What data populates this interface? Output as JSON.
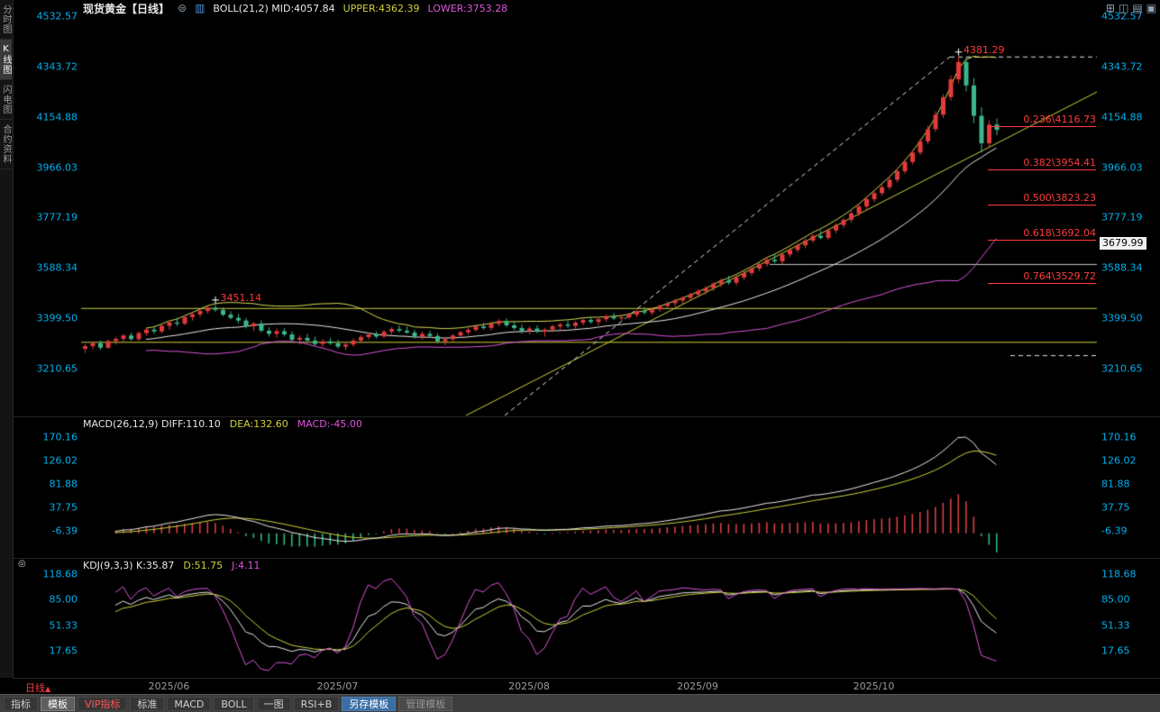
{
  "colors": {
    "up": "#e23b3b",
    "down": "#3cb68b",
    "axis": "#00b0f0",
    "fib": "#ff3b3b",
    "boll_mid": "#e8e8e8",
    "boll_upper": "#d8d855",
    "boll_lower": "#da55da",
    "diff": "#e8e8e8",
    "dea": "#cdd23a",
    "hist_pos": "#d94040",
    "hist_neg": "#2eb87e",
    "k": "#e8e8e8",
    "d": "#cdd23a",
    "j": "#dd55dd"
  },
  "sidebar": {
    "tabs": [
      {
        "label": "分时图",
        "name": "time-chart",
        "active": false
      },
      {
        "label": "K线图",
        "name": "kline-chart",
        "active": true
      },
      {
        "label": "闪电图",
        "name": "lightning-chart",
        "active": false
      },
      {
        "label": "合约资料",
        "name": "contract-info",
        "active": false
      }
    ]
  },
  "header": {
    "title": "现货黄金【日线】",
    "settings_icon": "⊜",
    "indicator_icon": "▥",
    "boll_text": "BOLL(21,2) MID:4057.84",
    "boll_upper": "UPPER:4362.39",
    "boll_lower": "LOWER:3753.28",
    "layout_icons": [
      {
        "name": "layout-grid-icon",
        "glyph": "⊞"
      },
      {
        "name": "layout-two-column-icon",
        "glyph": "◫"
      },
      {
        "name": "layout-rows-icon",
        "glyph": "▤"
      },
      {
        "name": "layout-single-icon",
        "glyph": "▣"
      }
    ]
  },
  "macd_header": {
    "main": "MACD(26,12,9) DIFF:110.10",
    "dea": "DEA:132.60",
    "macd": "MACD:-45.00"
  },
  "kdj_header": {
    "icon": "◎",
    "main": "KDJ(9,3,3) K:35.87",
    "d": "D:51.75",
    "j": "J:4.11"
  },
  "footer": {
    "period_label": "日线",
    "period_arrow": "▲",
    "toolbar": [
      {
        "label": "指标",
        "name": "indicators",
        "style": "tab"
      },
      {
        "label": "模板",
        "name": "templates",
        "style": "tab-active"
      },
      {
        "label": "VIP指标",
        "name": "vip-indicators",
        "style": "vip"
      },
      {
        "label": "标准",
        "name": "standard",
        "style": "tab"
      },
      {
        "label": "MACD",
        "name": "macd",
        "style": "tab"
      },
      {
        "label": "BOLL",
        "name": "boll",
        "style": "tab"
      },
      {
        "label": "一图",
        "name": "one-chart",
        "style": "tab"
      },
      {
        "label": "RSI+B",
        "name": "rsi-b",
        "style": "tab"
      },
      {
        "label": "另存模板",
        "name": "save-template",
        "style": "primary"
      },
      {
        "label": "管理模板",
        "name": "manage-templates",
        "style": "muted"
      }
    ]
  },
  "chart_data": {
    "type": "candlestick",
    "symbol": "现货黄金",
    "period": "日线",
    "price_axis_ticks": [
      "4532.57",
      "4343.72",
      "4154.88",
      "3966.03",
      "3777.19",
      "3588.34",
      "3399.50",
      "3210.65"
    ],
    "macd_axis_ticks": [
      "170.16",
      "126.02",
      "81.88",
      "37.75",
      "-6.39"
    ],
    "kdj_axis_ticks": [
      "118.68",
      "85.00",
      "51.33",
      "17.65"
    ],
    "x_ticks": [
      {
        "index": 11,
        "label": "2025/06"
      },
      {
        "index": 33,
        "label": "2025/07"
      },
      {
        "index": 58,
        "label": "2025/08"
      },
      {
        "index": 80,
        "label": "2025/09"
      },
      {
        "index": 103,
        "label": "2025/10"
      }
    ],
    "boll": {
      "period": 21,
      "mult": 2
    },
    "macd": {
      "fast": 12,
      "slow": 26,
      "signal": 9
    },
    "kdj": {
      "n": 9,
      "m1": 3,
      "m2": 3
    },
    "candles": [
      [
        3285,
        3302,
        3270,
        3295
      ],
      [
        3295,
        3312,
        3284,
        3306
      ],
      [
        3306,
        3316,
        3281,
        3289
      ],
      [
        3289,
        3320,
        3285,
        3314
      ],
      [
        3314,
        3330,
        3301,
        3322
      ],
      [
        3322,
        3341,
        3310,
        3335
      ],
      [
        3335,
        3346,
        3316,
        3321
      ],
      [
        3321,
        3350,
        3315,
        3344
      ],
      [
        3344,
        3364,
        3334,
        3357
      ],
      [
        3357,
        3371,
        3341,
        3350
      ],
      [
        3350,
        3379,
        3344,
        3371
      ],
      [
        3371,
        3390,
        3356,
        3384
      ],
      [
        3384,
        3401,
        3370,
        3379
      ],
      [
        3379,
        3410,
        3374,
        3404
      ],
      [
        3404,
        3421,
        3391,
        3414
      ],
      [
        3414,
        3434,
        3404,
        3427
      ],
      [
        3427,
        3446,
        3417,
        3439
      ],
      [
        3439,
        3451.14,
        3424,
        3431
      ],
      [
        3431,
        3441,
        3406,
        3413
      ],
      [
        3413,
        3426,
        3396,
        3401
      ],
      [
        3401,
        3416,
        3381,
        3391
      ],
      [
        3391,
        3401,
        3361,
        3369
      ],
      [
        3369,
        3386,
        3351,
        3380
      ],
      [
        3380,
        3391,
        3346,
        3353
      ],
      [
        3353,
        3366,
        3331,
        3341
      ],
      [
        3341,
        3361,
        3326,
        3351
      ],
      [
        3351,
        3363,
        3331,
        3339
      ],
      [
        3339,
        3351,
        3311,
        3319
      ],
      [
        3319,
        3336,
        3301,
        3326
      ],
      [
        3326,
        3341,
        3309,
        3316
      ],
      [
        3316,
        3331,
        3296,
        3303
      ],
      [
        3303,
        3321,
        3291,
        3313
      ],
      [
        3313,
        3326,
        3299,
        3306
      ],
      [
        3306,
        3319,
        3286,
        3293
      ],
      [
        3293,
        3311,
        3281,
        3301
      ],
      [
        3301,
        3323,
        3293,
        3316
      ],
      [
        3316,
        3336,
        3306,
        3329
      ],
      [
        3329,
        3346,
        3319,
        3339
      ],
      [
        3339,
        3351,
        3323,
        3331
      ],
      [
        3331,
        3356,
        3326,
        3349
      ],
      [
        3349,
        3366,
        3339,
        3359
      ],
      [
        3359,
        3373,
        3346,
        3353
      ],
      [
        3353,
        3369,
        3341,
        3346
      ],
      [
        3346,
        3356,
        3323,
        3331
      ],
      [
        3331,
        3349,
        3319,
        3341
      ],
      [
        3341,
        3353,
        3326,
        3333
      ],
      [
        3333,
        3343,
        3306,
        3313
      ],
      [
        3313,
        3329,
        3299,
        3321
      ],
      [
        3321,
        3341,
        3311,
        3335
      ],
      [
        3335,
        3353,
        3327,
        3347
      ],
      [
        3347,
        3363,
        3337,
        3356
      ],
      [
        3356,
        3376,
        3349,
        3369
      ],
      [
        3369,
        3383,
        3356,
        3363
      ],
      [
        3363,
        3386,
        3353,
        3379
      ],
      [
        3379,
        3396,
        3369,
        3389
      ],
      [
        3389,
        3399,
        3366,
        3373
      ],
      [
        3373,
        3386,
        3356,
        3363
      ],
      [
        3363,
        3376,
        3341,
        3351
      ],
      [
        3351,
        3369,
        3339,
        3361
      ],
      [
        3361,
        3373,
        3343,
        3349
      ],
      [
        3349,
        3363,
        3331,
        3357
      ],
      [
        3357,
        3376,
        3347,
        3369
      ],
      [
        3369,
        3383,
        3357,
        3376
      ],
      [
        3376,
        3391,
        3363,
        3371
      ],
      [
        3371,
        3389,
        3361,
        3383
      ],
      [
        3383,
        3399,
        3373,
        3393
      ],
      [
        3393,
        3406,
        3379,
        3386
      ],
      [
        3386,
        3401,
        3373,
        3396
      ],
      [
        3396,
        3413,
        3386,
        3406
      ],
      [
        3406,
        3419,
        3393,
        3399
      ],
      [
        3399,
        3411,
        3386,
        3403
      ],
      [
        3403,
        3421,
        3396,
        3413
      ],
      [
        3413,
        3431,
        3403,
        3426
      ],
      [
        3426,
        3441,
        3413,
        3421
      ],
      [
        3421,
        3439,
        3411,
        3433
      ],
      [
        3433,
        3451,
        3423,
        3446
      ],
      [
        3446,
        3463,
        3436,
        3456
      ],
      [
        3456,
        3473,
        3443,
        3466
      ],
      [
        3466,
        3481,
        3453,
        3476
      ],
      [
        3476,
        3496,
        3466,
        3489
      ],
      [
        3489,
        3509,
        3479,
        3501
      ],
      [
        3501,
        3521,
        3489,
        3513
      ],
      [
        3513,
        3536,
        3501,
        3529
      ],
      [
        3529,
        3549,
        3516,
        3541
      ],
      [
        3541,
        3559,
        3526,
        3533
      ],
      [
        3533,
        3561,
        3523,
        3553
      ],
      [
        3553,
        3576,
        3543,
        3569
      ],
      [
        3569,
        3593,
        3559,
        3586
      ],
      [
        3586,
        3611,
        3576,
        3603
      ],
      [
        3603,
        3629,
        3593,
        3619
      ],
      [
        3619,
        3641,
        3606,
        3613
      ],
      [
        3613,
        3646,
        3603,
        3639
      ],
      [
        3639,
        3663,
        3629,
        3656
      ],
      [
        3656,
        3681,
        3646,
        3673
      ],
      [
        3673,
        3699,
        3663,
        3691
      ],
      [
        3691,
        3716,
        3681,
        3709
      ],
      [
        3709,
        3729,
        3696,
        3701
      ],
      [
        3701,
        3736,
        3693,
        3729
      ],
      [
        3729,
        3756,
        3719,
        3749
      ],
      [
        3749,
        3776,
        3739,
        3769
      ],
      [
        3769,
        3801,
        3759,
        3793
      ],
      [
        3793,
        3829,
        3783,
        3819
      ],
      [
        3819,
        3853,
        3809,
        3846
      ],
      [
        3846,
        3879,
        3836,
        3869
      ],
      [
        3869,
        3901,
        3859,
        3891
      ],
      [
        3891,
        3929,
        3881,
        3919
      ],
      [
        3919,
        3961,
        3909,
        3951
      ],
      [
        3951,
        3996,
        3941,
        3986
      ],
      [
        3986,
        4031,
        3976,
        4021
      ],
      [
        4021,
        4073,
        4011,
        4063
      ],
      [
        4063,
        4121,
        4053,
        4109
      ],
      [
        4109,
        4176,
        4099,
        4163
      ],
      [
        4163,
        4241,
        4151,
        4229
      ],
      [
        4229,
        4311,
        4216,
        4296
      ],
      [
        4296,
        4381.29,
        4281,
        4361
      ],
      [
        4361,
        4379,
        4251,
        4273
      ],
      [
        4273,
        4301,
        4131,
        4159
      ],
      [
        4159,
        4191,
        4021,
        4056
      ],
      [
        4056,
        4141,
        4041,
        4126
      ],
      [
        4126,
        4149,
        4086,
        4106
      ]
    ],
    "annotations": {
      "peak_labels": [
        {
          "text": "3451.14",
          "index": 17,
          "price": 3451.14
        },
        {
          "text": "4381.29",
          "index": 114,
          "price": 4381.29
        }
      ],
      "fib_levels": [
        {
          "text": "0.236\\4116.73",
          "price": 4116.73
        },
        {
          "text": "0.382\\3954.41",
          "price": 3954.41
        },
        {
          "text": "0.500\\3823.23",
          "price": 3823.23
        },
        {
          "text": "0.618\\3692.04",
          "price": 3692.04
        },
        {
          "text": "0.764\\3529.72",
          "price": 3529.72
        }
      ],
      "price_marker": {
        "text": "3679.99",
        "price": 3679.99
      },
      "h_lines": [
        {
          "price": 3438,
          "color": "#cdd23a",
          "x1": 76,
          "x2": 1203
        },
        {
          "price": 3311,
          "color": "#cdd23a",
          "x1": 76,
          "x2": 1203
        },
        {
          "price": 3603,
          "color": "#c8c8c8",
          "x1": 840,
          "x2": 1203
        }
      ],
      "trend_lines": [
        {
          "style": "solid",
          "color": "#cdd23a",
          "x1": 503,
          "y1": 443,
          "x2": 1203,
          "y2": 84
        },
        {
          "style": "dashed",
          "color": "#e8e8e8",
          "x1": 546,
          "y1": 443,
          "x2": 1040,
          "y2": 45
        }
      ],
      "dashed_h_lines": [
        {
          "price": 4381.29,
          "x1": 1040,
          "x2": 1203,
          "color": "#e8e8e8"
        },
        {
          "price": 3261,
          "x1": 1107,
          "x2": 1203,
          "color": "#e8e8e8"
        }
      ]
    }
  }
}
